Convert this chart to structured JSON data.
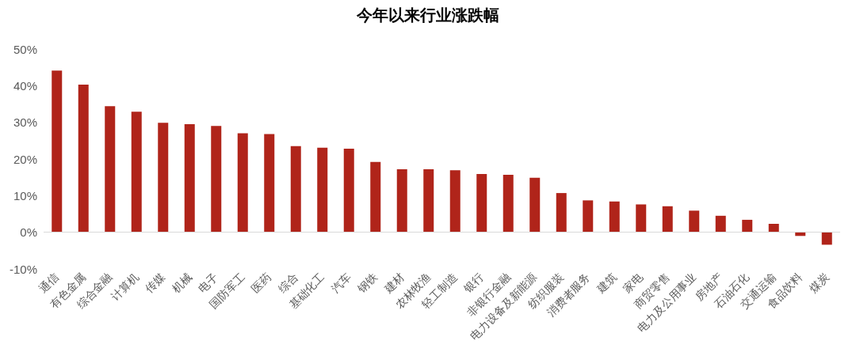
{
  "chart_data": {
    "type": "bar",
    "title": "今年以来行业涨跌幅",
    "categories": [
      "通信",
      "有色金属",
      "综合金融",
      "计算机",
      "传媒",
      "机械",
      "电子",
      "国防军工",
      "医药",
      "综合",
      "基础化工",
      "汽车",
      "钢铁",
      "建材",
      "农林牧渔",
      "轻工制造",
      "银行",
      "非银行金融",
      "电力设备及新能源",
      "纺织服装",
      "消费者服务",
      "建筑",
      "家电",
      "商贸零售",
      "电力及公用事业",
      "房地产",
      "石油石化",
      "交通运输",
      "食品饮料",
      "煤炭"
    ],
    "values": [
      44.1,
      40.3,
      34.4,
      32.9,
      29.9,
      29.5,
      29.0,
      27.0,
      26.8,
      23.5,
      23.1,
      22.8,
      19.2,
      17.2,
      17.2,
      16.9,
      15.9,
      15.7,
      14.9,
      10.7,
      8.7,
      8.4,
      7.6,
      7.1,
      5.9,
      4.5,
      3.4,
      2.3,
      -1.0,
      -3.4
    ],
    "color": "#b0241a",
    "ylim": [
      -10,
      50
    ],
    "yticks": [
      {
        "value": -10,
        "label": "-10%"
      },
      {
        "value": 0,
        "label": "0%"
      },
      {
        "value": 10,
        "label": "10%"
      },
      {
        "value": 20,
        "label": "20%"
      },
      {
        "value": 30,
        "label": "30%"
      },
      {
        "value": 40,
        "label": "40%"
      },
      {
        "value": 50,
        "label": "50%"
      }
    ],
    "ref_lines": [
      {
        "axis": "y",
        "value": 0,
        "color": "#d9d9d9"
      }
    ]
  }
}
